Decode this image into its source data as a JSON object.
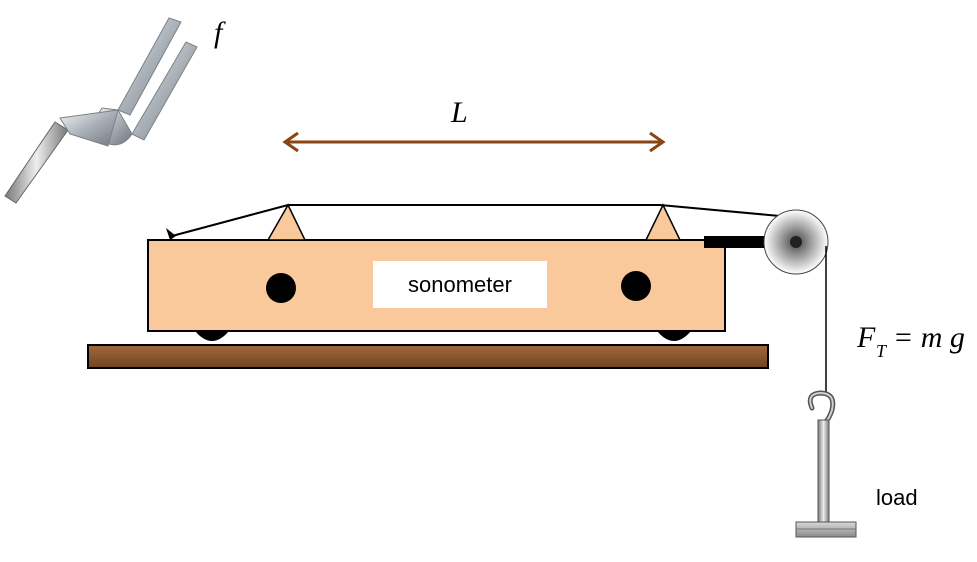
{
  "labels": {
    "frequency": "f",
    "length": "L",
    "device": "sonometer",
    "tension_lhs": "F",
    "tension_sub": "T",
    "tension_rhs": "= m g",
    "load": "load"
  },
  "colors": {
    "box": "#F9C89B",
    "base": "#8B5A2B",
    "arrow": "#8B4513",
    "ink": "#000000",
    "fork": "#B8BEC4"
  }
}
